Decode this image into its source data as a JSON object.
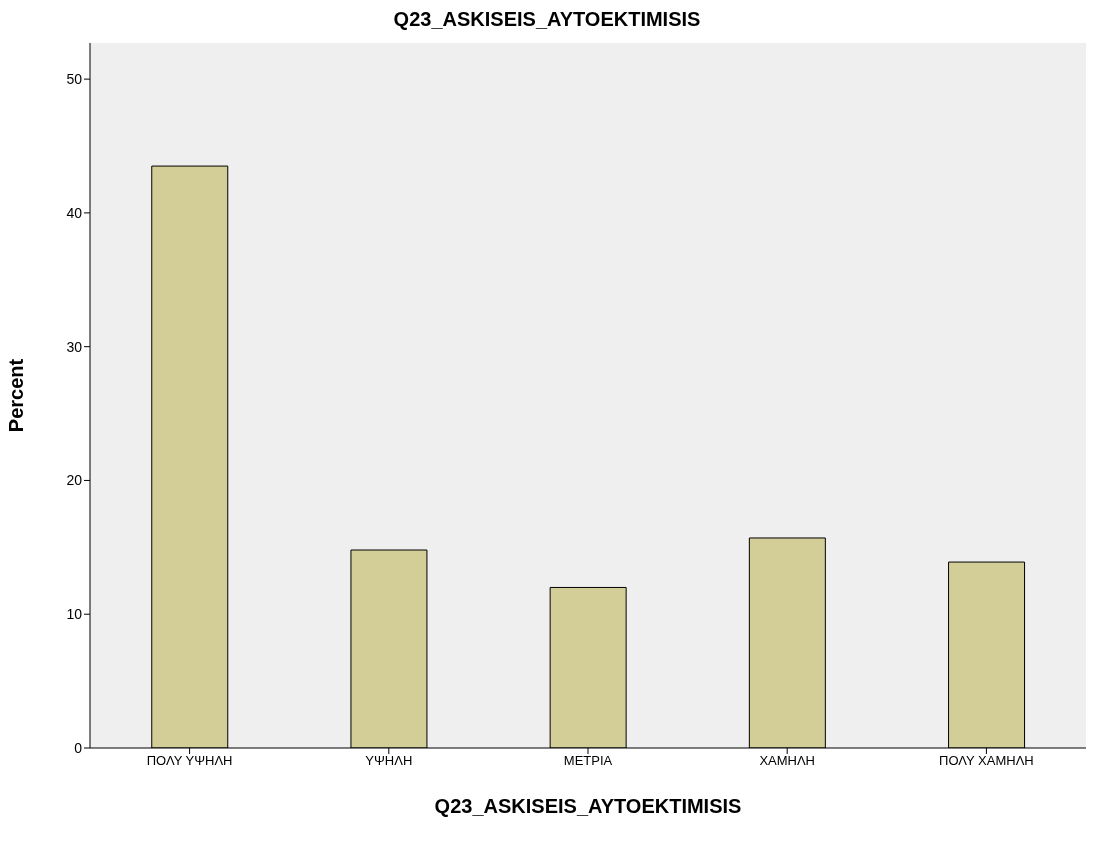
{
  "chart_data": {
    "type": "bar",
    "title": "Q23_ASKISEIS_AYTOEKTIMISIS",
    "xlabel": "Q23_ASKISEIS_AYTOEKTIMISIS",
    "ylabel": "Percent",
    "categories": [
      "ΠΟΛΥ ΥΨΗΛΗ",
      "ΥΨΗΛΗ",
      "ΜΕΤΡΙΑ",
      "ΧΑΜΗΛΗ",
      "ΠΟΛΥ ΧΑΜΗΛΗ"
    ],
    "values": [
      43.5,
      14.8,
      12.0,
      15.7,
      13.9
    ],
    "color": "#d3ce97",
    "ylim": [
      0,
      52.7
    ],
    "yticks": [
      0,
      10,
      20,
      30,
      40,
      50
    ],
    "grid": false,
    "legend": false
  }
}
